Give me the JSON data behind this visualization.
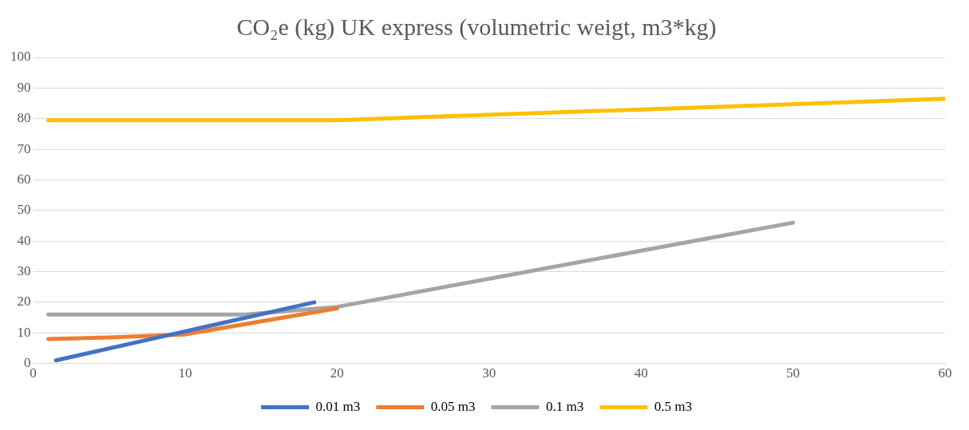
{
  "chart_data": {
    "type": "line",
    "title": "CO₂e (kg) UK express (volumetric weigt, m3*kg)",
    "series": [
      {
        "name": "0.01 m3",
        "color": "#4472c4",
        "x": [
          1.5,
          10,
          18.5
        ],
        "values": [
          1,
          10.5,
          20
        ]
      },
      {
        "name": "0.05 m3",
        "color": "#ed7d31",
        "x": [
          1,
          5,
          10,
          20
        ],
        "values": [
          8,
          8.5,
          9.5,
          18
        ]
      },
      {
        "name": "0.1 m3",
        "color": "#a5a5a5",
        "x": [
          1,
          14,
          20,
          50
        ],
        "values": [
          16,
          16,
          18.5,
          46
        ]
      },
      {
        "name": "0.5 m3",
        "color": "#ffc000",
        "x": [
          1,
          20,
          60
        ],
        "values": [
          79.5,
          79.5,
          86.5
        ]
      }
    ],
    "xlim": [
      0,
      60
    ],
    "xticks": [
      0,
      10,
      20,
      30,
      40,
      50,
      60
    ],
    "ylim": [
      0,
      100
    ],
    "yticks": [
      0,
      10,
      20,
      30,
      40,
      50,
      60,
      70,
      80,
      90,
      100
    ],
    "grid": "y",
    "legend": "bottom",
    "marker": "none",
    "line_style": "solid"
  }
}
